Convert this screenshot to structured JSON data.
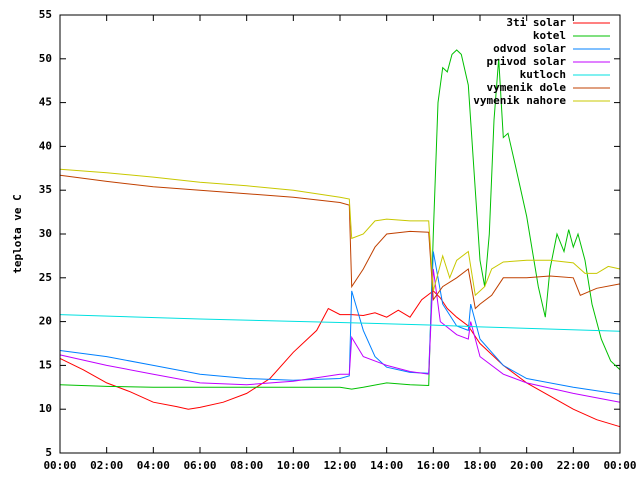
{
  "chart_data": {
    "type": "line",
    "y_label": "teplota ve C",
    "xlim": [
      0,
      24
    ],
    "xticks": [
      {
        "value": 0,
        "label": "00:00"
      },
      {
        "value": 2,
        "label": "02:00"
      },
      {
        "value": 4,
        "label": "04:00"
      },
      {
        "value": 6,
        "label": "06:00"
      },
      {
        "value": 8,
        "label": "08:00"
      },
      {
        "value": 10,
        "label": "10:00"
      },
      {
        "value": 12,
        "label": "12:00"
      },
      {
        "value": 14,
        "label": "14:00"
      },
      {
        "value": 16,
        "label": "16:00"
      },
      {
        "value": 18,
        "label": "18:00"
      },
      {
        "value": 20,
        "label": "20:00"
      },
      {
        "value": 22,
        "label": "22:00"
      },
      {
        "value": 24,
        "label": "00:00"
      }
    ],
    "ylim": [
      5,
      55
    ],
    "yticks": [
      5,
      10,
      15,
      20,
      25,
      30,
      35,
      40,
      45,
      50,
      55
    ],
    "legend": "top-right",
    "series": [
      {
        "name": "3ti solar",
        "color": "#ff0000",
        "x": [
          0,
          1,
          2,
          3,
          4,
          5,
          5.5,
          6,
          7,
          8,
          9,
          10,
          11,
          11.5,
          12,
          12.5,
          13,
          13.5,
          14,
          14.5,
          15,
          15.5,
          16,
          16.3,
          16.6,
          17,
          17.5,
          18,
          19,
          20,
          21,
          22,
          23,
          24
        ],
        "values": [
          15.8,
          14.5,
          13,
          12,
          10.8,
          10.3,
          10,
          10.2,
          10.8,
          11.8,
          13.5,
          16.5,
          19,
          21.5,
          20.8,
          20.8,
          20.7,
          21,
          20.5,
          21.3,
          20.5,
          22.5,
          23.5,
          22.7,
          21.5,
          20.5,
          19.5,
          17.5,
          15,
          13,
          11.5,
          10,
          8.8,
          8
        ]
      },
      {
        "name": "kotel",
        "color": "#00c000",
        "x": [
          0,
          2,
          4,
          6,
          8,
          10,
          12,
          12.5,
          13,
          14,
          15,
          15.8,
          16,
          16.2,
          16.4,
          16.6,
          16.8,
          17,
          17.2,
          17.5,
          17.8,
          18,
          18.2,
          18.4,
          18.6,
          18.8,
          19,
          19.2,
          19.5,
          20,
          20.5,
          20.8,
          21,
          21.3,
          21.6,
          21.8,
          22,
          22.2,
          22.5,
          22.8,
          23.2,
          23.6,
          24
        ],
        "values": [
          12.8,
          12.6,
          12.5,
          12.5,
          12.5,
          12.5,
          12.5,
          12.3,
          12.5,
          13,
          12.8,
          12.7,
          30,
          45,
          49,
          48.5,
          50.5,
          51,
          50.5,
          47,
          35,
          27,
          24,
          30,
          43,
          50,
          41,
          41.5,
          38,
          32,
          24,
          20.5,
          26,
          30,
          28,
          30.5,
          28.5,
          30,
          27,
          22,
          18,
          15.5,
          14.5
        ]
      },
      {
        "name": "odvod solar",
        "color": "#0080ff",
        "x": [
          0,
          2,
          4,
          6,
          8,
          10,
          12,
          12.4,
          12.5,
          13,
          13.5,
          14,
          15,
          15.8,
          16,
          16.4,
          17,
          17.5,
          17.6,
          18,
          19,
          20,
          22,
          24
        ],
        "values": [
          16.7,
          16,
          15,
          14,
          13.5,
          13.3,
          13.5,
          13.8,
          23.5,
          19,
          16,
          14.8,
          14.2,
          14.1,
          28,
          22,
          19.5,
          19,
          22,
          18,
          15,
          13.5,
          12.5,
          11.7
        ]
      },
      {
        "name": "privod solar",
        "color": "#c000ff",
        "x": [
          0,
          2,
          4,
          6,
          8,
          10,
          12,
          12.4,
          12.5,
          13,
          14,
          15,
          15.8,
          16,
          16.3,
          17,
          17.5,
          17.6,
          18,
          19,
          20,
          22,
          24
        ],
        "values": [
          16.2,
          15,
          14,
          13,
          12.8,
          13.2,
          14,
          14,
          18.2,
          16,
          15,
          14.3,
          14,
          26,
          20,
          18.5,
          18,
          20,
          16,
          14,
          13,
          11.8,
          10.8
        ]
      },
      {
        "name": "kutloch",
        "color": "#00e0e0",
        "x": [
          0,
          6,
          12,
          16,
          18,
          24
        ],
        "values": [
          20.8,
          20.3,
          19.9,
          19.6,
          19.4,
          18.9
        ]
      },
      {
        "name": "vymenik dole",
        "color": "#c04000",
        "x": [
          0,
          2,
          4,
          6,
          8,
          10,
          12,
          12.4,
          12.5,
          13,
          13.5,
          14,
          15,
          15.8,
          16,
          16.4,
          17,
          17.5,
          17.8,
          18,
          18.5,
          19,
          20,
          21,
          22,
          22.3,
          23,
          24
        ],
        "values": [
          36.7,
          36,
          35.4,
          35,
          34.6,
          34.2,
          33.6,
          33.3,
          24,
          26,
          28.5,
          30,
          30.3,
          30.2,
          22.5,
          24,
          25,
          26,
          21.5,
          22,
          23,
          25,
          25,
          25.2,
          25,
          23,
          23.8,
          24.3
        ]
      },
      {
        "name": "vymenik nahore",
        "color": "#c8c800",
        "x": [
          0,
          2,
          4,
          6,
          8,
          10,
          12,
          12.4,
          12.5,
          13,
          13.5,
          14,
          15,
          15.8,
          16,
          16.4,
          16.7,
          17,
          17.5,
          17.8,
          18.2,
          18.5,
          19,
          20,
          21,
          22,
          22.5,
          23,
          23.5,
          24
        ],
        "values": [
          37.4,
          37,
          36.5,
          35.9,
          35.5,
          35,
          34.2,
          34,
          29.5,
          30,
          31.5,
          31.7,
          31.5,
          31.5,
          23.5,
          27.5,
          25,
          27,
          28,
          23,
          24,
          26,
          26.8,
          27,
          27,
          26.7,
          25.5,
          25.5,
          26.3,
          26
        ]
      }
    ]
  }
}
